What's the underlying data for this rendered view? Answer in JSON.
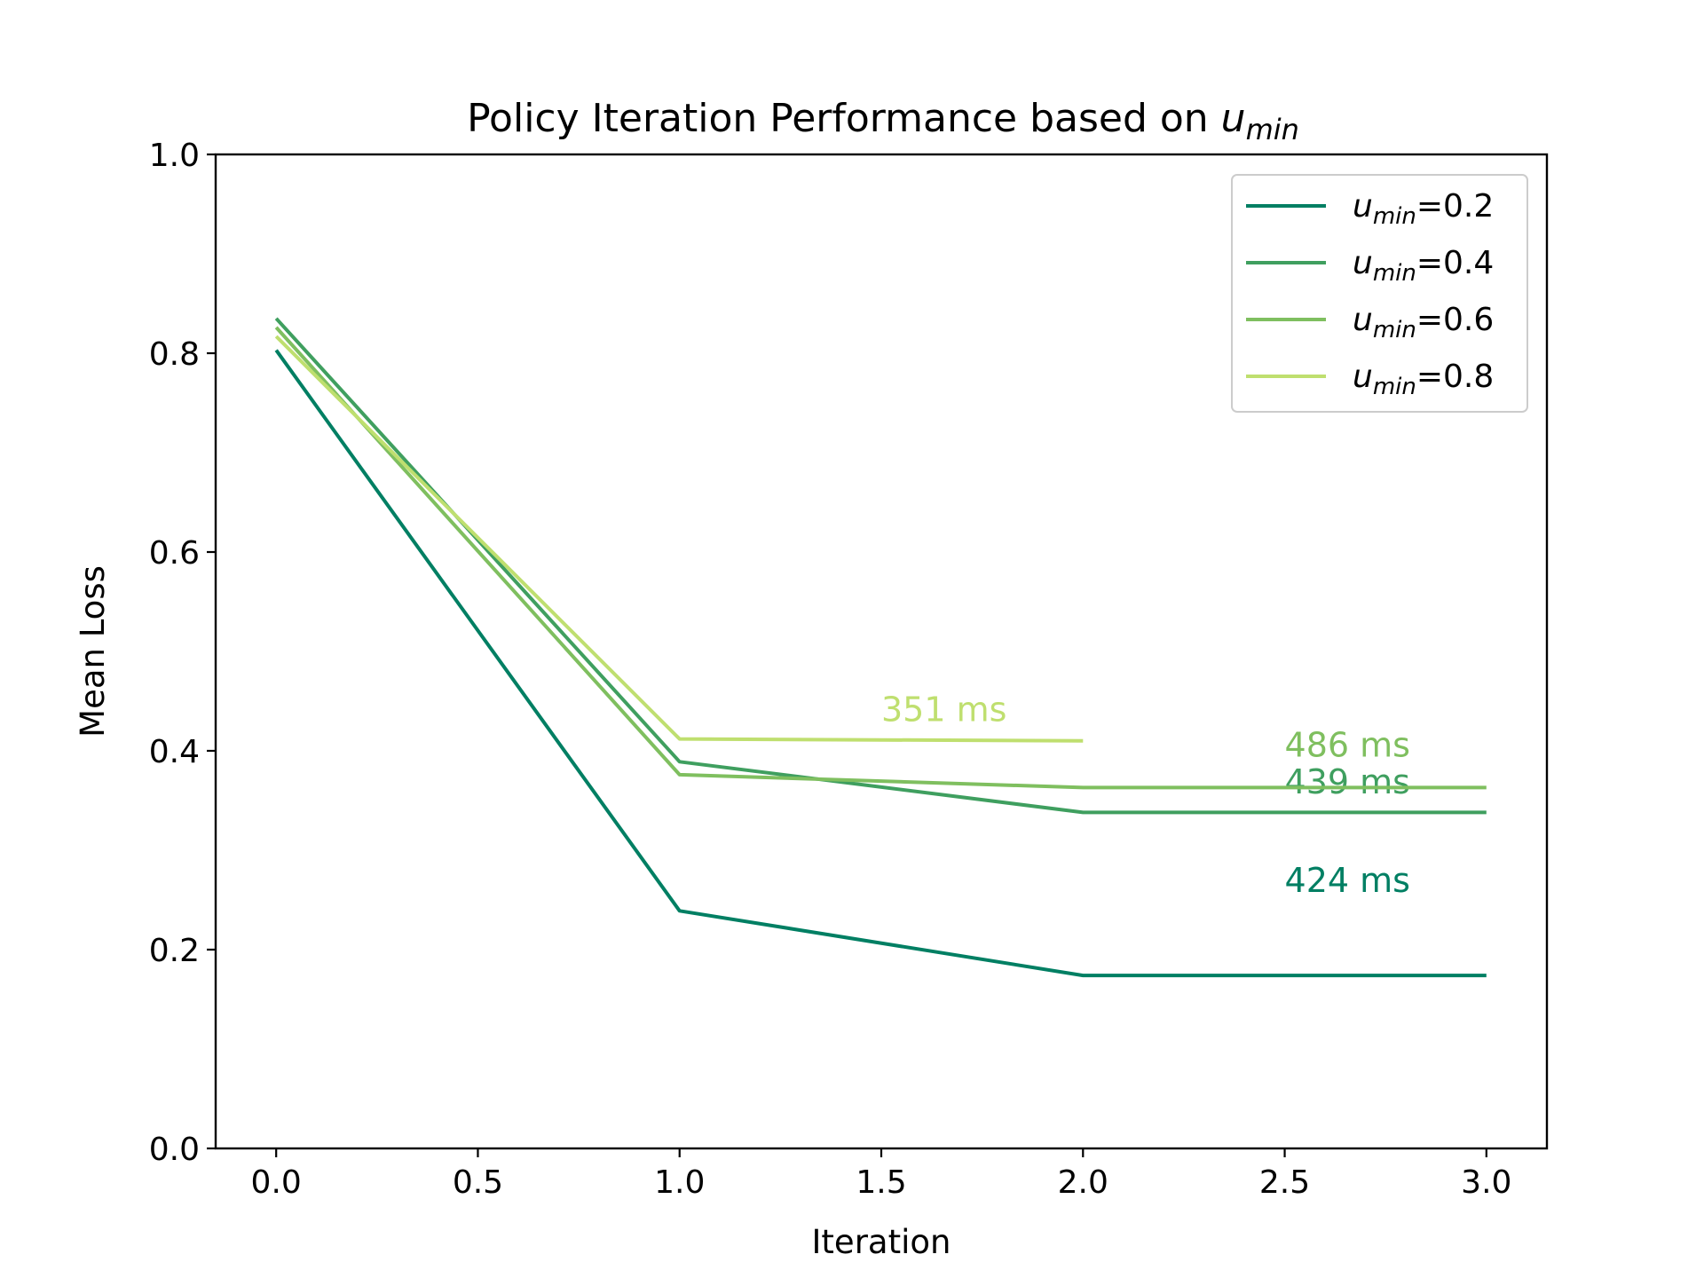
{
  "chart_data": {
    "type": "line",
    "title": "Policy Iteration Performance based on ",
    "title_var": "u",
    "title_sub": "min",
    "xlabel": "Iteration",
    "ylabel": "Mean Loss",
    "xlim": [
      -0.15,
      3.15
    ],
    "ylim": [
      0.0,
      1.0
    ],
    "xticks": [
      0.0,
      0.5,
      1.0,
      1.5,
      2.0,
      2.5,
      3.0
    ],
    "xtick_labels": [
      "0.0",
      "0.5",
      "1.0",
      "1.5",
      "2.0",
      "2.5",
      "3.0"
    ],
    "yticks": [
      0.0,
      0.2,
      0.4,
      0.6,
      0.8,
      1.0
    ],
    "ytick_labels": [
      "0.0",
      "0.2",
      "0.4",
      "0.6",
      "0.8",
      "1.0"
    ],
    "grid": false,
    "legend_position": "top-right",
    "series": [
      {
        "name": "u_min=0.2",
        "legend_var": "u",
        "legend_sub": "min",
        "legend_value": "=0.2",
        "color": "#007f63",
        "x": [
          0,
          1,
          2,
          3
        ],
        "y": [
          0.803,
          0.239,
          0.174,
          0.174
        ],
        "annotation": {
          "text": "424 ms",
          "x": 2.5,
          "y": 0.258
        }
      },
      {
        "name": "u_min=0.4",
        "legend_var": "u",
        "legend_sub": "min",
        "legend_value": "=0.4",
        "color": "#3f9f5f",
        "x": [
          0,
          1,
          2,
          3
        ],
        "y": [
          0.835,
          0.389,
          0.338,
          0.338
        ],
        "annotation": {
          "text": "439 ms",
          "x": 2.5,
          "y": 0.357
        }
      },
      {
        "name": "u_min=0.6",
        "legend_var": "u",
        "legend_sub": "min",
        "legend_value": "=0.6",
        "color": "#7fbf5f",
        "x": [
          0,
          1,
          2,
          3
        ],
        "y": [
          0.826,
          0.376,
          0.363,
          0.363
        ],
        "annotation": {
          "text": "486 ms",
          "x": 2.5,
          "y": 0.394
        }
      },
      {
        "name": "u_min=0.8",
        "legend_var": "u",
        "legend_sub": "min",
        "legend_value": "=0.8",
        "color": "#bfdf6f",
        "x": [
          0,
          1,
          2
        ],
        "y": [
          0.817,
          0.412,
          0.41
        ],
        "annotation": {
          "text": "351 ms",
          "x": 1.5,
          "y": 0.43
        }
      }
    ]
  }
}
